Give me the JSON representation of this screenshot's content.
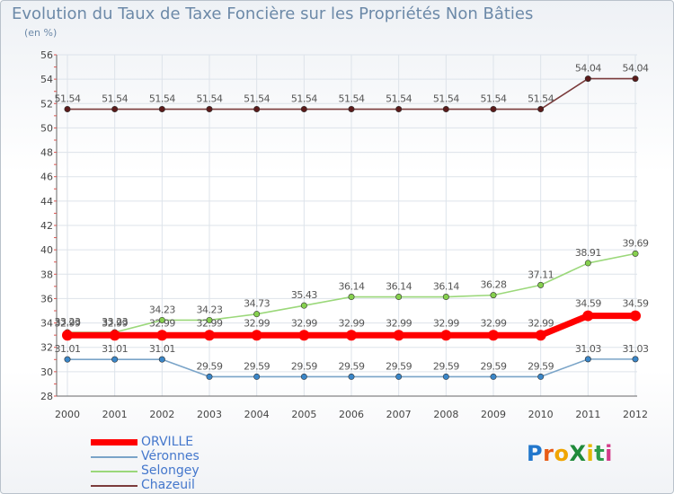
{
  "title": "Evolution du Taux de Taxe Foncière sur les Propriétés Non Bâties",
  "unit": "(en %)",
  "logo": "ProXiti",
  "logo_letters": [
    {
      "ch": "P",
      "color": "#2277cc"
    },
    {
      "ch": "r",
      "color": "#e85c17"
    },
    {
      "ch": "o",
      "color": "#f0a500"
    },
    {
      "ch": "X",
      "color": "#1f8a3a"
    },
    {
      "ch": "i",
      "color": "#e6b800"
    },
    {
      "ch": "t",
      "color": "#2e9c4a"
    },
    {
      "ch": "i",
      "color": "#d33b8a"
    }
  ],
  "chart_data": {
    "type": "line",
    "title": "Evolution du Taux de Taxe Foncière sur les Propriétés Non Bâties",
    "ylabel": "(en %)",
    "xlabel": "",
    "ylim": [
      28,
      56
    ],
    "yticks": [
      "28",
      "30",
      "32",
      "34",
      "36",
      "38",
      "40",
      "42",
      "44",
      "46",
      "48",
      "50",
      "52",
      "54",
      "56"
    ],
    "categories": [
      "2000",
      "2001",
      "2002",
      "2003",
      "2004",
      "2005",
      "2006",
      "2007",
      "2008",
      "2009",
      "2010",
      "2011",
      "2012"
    ],
    "legend_position": "bottom-left",
    "series": [
      {
        "name": "Chazeuil",
        "color": "#7b3b3b",
        "marker": "#5a1a1a",
        "values": [
          51.54,
          51.54,
          51.54,
          51.54,
          51.54,
          51.54,
          51.54,
          51.54,
          51.54,
          51.54,
          51.54,
          54.04,
          54.04
        ],
        "labels": [
          "51.54",
          "51.54",
          "51.54",
          "51.54",
          "51.54",
          "51.54",
          "51.54",
          "51.54",
          "51.54",
          "51.54",
          "51.54",
          "54.04",
          "54.04"
        ]
      },
      {
        "name": "Selongey",
        "color": "#9bd87a",
        "marker": "#86d04e",
        "values": [
          33.23,
          33.23,
          34.23,
          34.23,
          34.73,
          35.43,
          36.14,
          36.14,
          36.14,
          36.28,
          37.11,
          38.91,
          39.69
        ],
        "labels": [
          "33.23",
          "33.23",
          "34.23",
          "34.23",
          "34.73",
          "35.43",
          "36.14",
          "36.14",
          "36.14",
          "36.28",
          "37.11",
          "38.91",
          "39.69"
        ]
      },
      {
        "name": "Véronnes",
        "color": "#7aa4c8",
        "marker": "#3a86c8",
        "values": [
          31.01,
          31.01,
          31.01,
          29.59,
          29.59,
          29.59,
          29.59,
          29.59,
          29.59,
          29.59,
          29.59,
          31.03,
          31.03
        ],
        "labels": [
          "31.01",
          "31.01",
          "31.01",
          "29.59",
          "29.59",
          "29.59",
          "29.59",
          "29.59",
          "29.59",
          "29.59",
          "29.59",
          "31.03",
          "31.03"
        ]
      },
      {
        "name": "ORVILLE",
        "color": "#ff0000",
        "marker": "#ff0000",
        "values": [
          32.99,
          32.99,
          32.99,
          32.99,
          32.99,
          32.99,
          32.99,
          32.99,
          32.99,
          32.99,
          32.99,
          34.59,
          34.59
        ],
        "labels": [
          "32.99",
          "32.99",
          "32.99",
          "32.99",
          "32.99",
          "32.99",
          "32.99",
          "32.99",
          "32.99",
          "32.99",
          "32.99",
          "34.59",
          "34.59"
        ]
      }
    ],
    "legend": [
      "ORVILLE",
      "Véronnes",
      "Selongey",
      "Chazeuil"
    ]
  }
}
